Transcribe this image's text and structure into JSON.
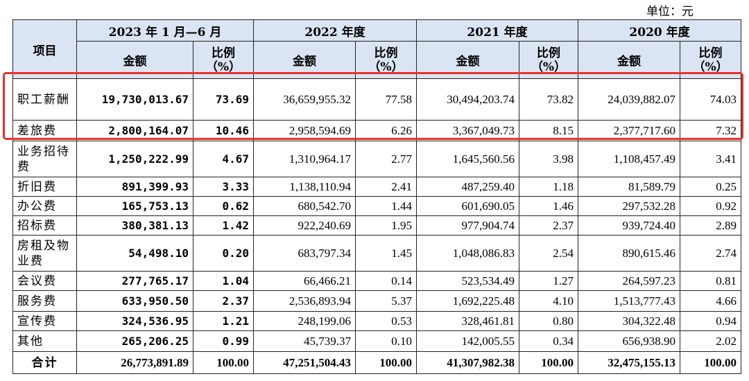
{
  "unit_label": "单位：元",
  "headers": {
    "item": "项目",
    "periods": [
      "2023 年 1 月—6 月",
      "2022 年度",
      "2021 年度",
      "2020 年度"
    ],
    "amount": "金额",
    "ratio_line1": "比例",
    "ratio_line2": "（%）"
  },
  "rows": [
    {
      "item": "职工薪酬",
      "v": [
        "19,730,013.67",
        "73.69",
        "36,659,955.32",
        "77.58",
        "30,494,203.74",
        "73.82",
        "24,039,882.07",
        "74.03"
      ]
    },
    {
      "item": "差旅费",
      "v": [
        "2,800,164.07",
        "10.46",
        "2,958,594.69",
        "6.26",
        "3,367,049.73",
        "8.15",
        "2,377,717.60",
        "7.32"
      ]
    },
    {
      "item": "业务招待费",
      "v": [
        "1,250,222.99",
        "4.67",
        "1,310,964.17",
        "2.77",
        "1,645,560.56",
        "3.98",
        "1,108,457.49",
        "3.41"
      ]
    },
    {
      "item": "折旧费",
      "v": [
        "891,399.93",
        "3.33",
        "1,138,110.94",
        "2.41",
        "487,259.40",
        "1.18",
        "81,589.79",
        "0.25"
      ]
    },
    {
      "item": "办公费",
      "v": [
        "165,753.13",
        "0.62",
        "680,542.70",
        "1.44",
        "601,690.05",
        "1.46",
        "297,532.28",
        "0.92"
      ]
    },
    {
      "item": "招标费",
      "v": [
        "380,381.13",
        "1.42",
        "922,240.69",
        "1.95",
        "977,904.74",
        "2.37",
        "939,724.40",
        "2.89"
      ]
    },
    {
      "item": "房租及物业费",
      "v": [
        "54,498.10",
        "0.20",
        "683,797.34",
        "1.45",
        "1,048,086.83",
        "2.54",
        "890,615.46",
        "2.74"
      ]
    },
    {
      "item": "会议费",
      "v": [
        "277,765.17",
        "1.04",
        "66,466.21",
        "0.14",
        "523,534.49",
        "1.27",
        "264,597.23",
        "0.81"
      ]
    },
    {
      "item": "服务费",
      "v": [
        "633,950.50",
        "2.37",
        "2,536,893.94",
        "5.37",
        "1,692,225.48",
        "4.10",
        "1,513,777.43",
        "4.66"
      ]
    },
    {
      "item": "宣传费",
      "v": [
        "324,536.95",
        "1.21",
        "248,199.06",
        "0.53",
        "328,461.81",
        "0.80",
        "304,322.48",
        "0.94"
      ]
    },
    {
      "item": "其他",
      "v": [
        "265,206.25",
        "0.99",
        "45,739.37",
        "0.10",
        "142,005.55",
        "0.34",
        "656,938.90",
        "2.02"
      ]
    },
    {
      "item": "合计",
      "v": [
        "26,773,891.89",
        "100.00",
        "47,251,504.43",
        "100.00",
        "41,307,982.38",
        "100.00",
        "32,475,155.13",
        "100.00"
      ]
    }
  ],
  "highlight_color": "#e8332c",
  "header_bg": "#dbe4f2"
}
